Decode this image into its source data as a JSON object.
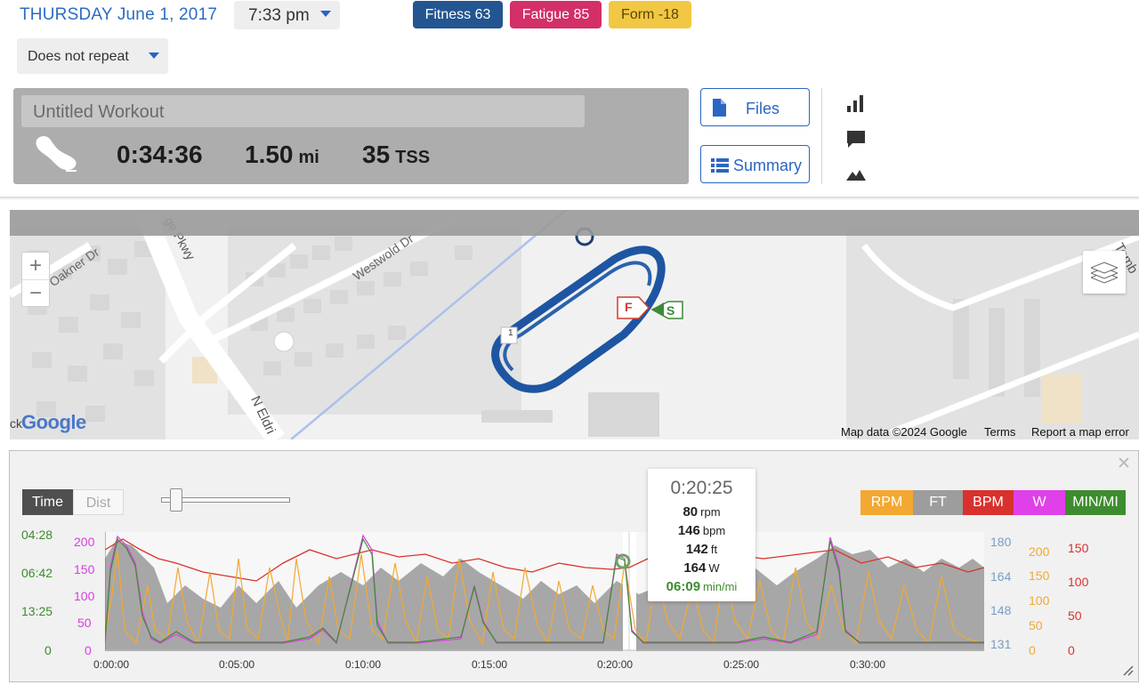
{
  "header": {
    "date": "THURSDAY June 1, 2017",
    "time": "7:33 pm",
    "repeat": "Does not repeat",
    "badges": {
      "fitness": "Fitness 63",
      "fatigue": "Fatigue 85",
      "form": "Form -18"
    }
  },
  "workout": {
    "title_placeholder": "Untitled Workout",
    "duration": "0:34:36",
    "distance": "1.50",
    "distance_unit": "mi",
    "tss": "35",
    "tss_unit": "TSS",
    "files_label": "Files",
    "summary_label": "Summary"
  },
  "map": {
    "streets": {
      "oakner": "Oakner Dr",
      "pkwy": "ge Pkwy",
      "westwold": "Westwold Dr",
      "eldri": "N Eldri",
      "tomb": "Tomb"
    },
    "lap_marker": "1",
    "finish_marker": "F",
    "start_marker": "S",
    "logo_prefix": "ck",
    "logo": "Google",
    "attribution": "Map data ©2024 Google",
    "terms": "Terms",
    "report": "Report a map error",
    "zoom_in": "+",
    "zoom_out": "−"
  },
  "chart": {
    "toggle_time": "Time",
    "toggle_dist": "Dist",
    "close": "✕",
    "legend": [
      "RPM",
      "FT",
      "BPM",
      "W",
      "MIN/MI"
    ],
    "colors": {
      "rpm": "#f3a832",
      "ft": "#9d9d9d",
      "bpm": "#d8322e",
      "w": "#e040e8",
      "pace": "#3d8c2f"
    },
    "left_axis_pace": [
      "04:28",
      "06:42",
      "13:25",
      "0"
    ],
    "left_axis_watts": [
      "200",
      "150",
      "100",
      "50",
      "0"
    ],
    "right_axis_ft": [
      "180",
      "164",
      "148",
      "131"
    ],
    "right_axis_rpm": [
      "200",
      "150",
      "100",
      "50",
      "0"
    ],
    "right_axis_bpm": [
      "150",
      "100",
      "50",
      "0"
    ],
    "x_ticks": [
      "0:00:00",
      "0:05:00",
      "0:10:00",
      "0:15:00",
      "0:20:00",
      "0:25:00",
      "0:30:00"
    ],
    "tooltip": {
      "time": "0:20:25",
      "rpm_value": "80",
      "rpm_unit": "rpm",
      "bpm_value": "146",
      "bpm_unit": "bpm",
      "ft_value": "142",
      "ft_unit": "ft",
      "w_value": "164",
      "w_unit": "W",
      "pace_value": "06:09",
      "pace_unit": "min/mi"
    }
  },
  "icons": {
    "shoe": "running-shoe-icon",
    "file": "file-icon",
    "list": "list-icon",
    "bars": "bar-chart-icon",
    "comment": "comment-icon",
    "mountain": "elevation-icon",
    "layers": "layers-icon"
  }
}
